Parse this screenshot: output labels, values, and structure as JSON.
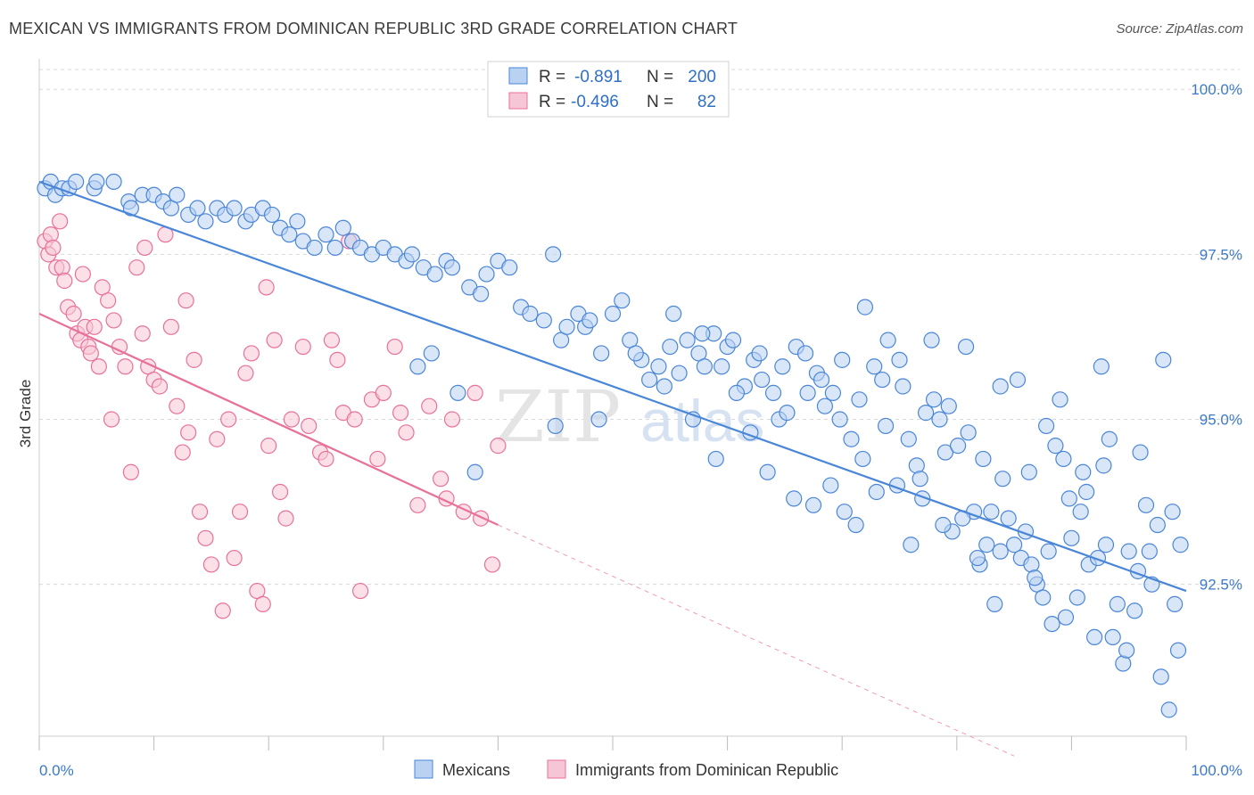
{
  "title": "MEXICAN VS IMMIGRANTS FROM DOMINICAN REPUBLIC 3RD GRADE CORRELATION CHART",
  "source": "Source: ZipAtlas.com",
  "watermark": {
    "zip": "ZIP",
    "atlas": "atlas"
  },
  "colors": {
    "blue": "#4a86d8",
    "blue_fill": "#b9d2f2",
    "pink": "#e8719a",
    "pink_fill": "#f7c6d6",
    "grid": "#d9d9d9",
    "axis_text": "#3c79c9"
  },
  "legend": {
    "rows": [
      {
        "r_label": "R =",
        "r_value": "-0.891",
        "n_label": "N =",
        "n_value": "200"
      },
      {
        "r_label": "R =",
        "r_value": "-0.496",
        "n_label": "N =",
        "n_value": "82"
      }
    ]
  },
  "chart_data": {
    "type": "scatter",
    "title": "MEXICAN VS IMMIGRANTS FROM DOMINICAN REPUBLIC 3RD GRADE CORRELATION CHART",
    "xlabel": "",
    "ylabel": "3rd Grade",
    "xlim": [
      0,
      100
    ],
    "ylim": [
      90.2,
      100.3
    ],
    "x_tick_labels": [
      "0.0%",
      "100.0%"
    ],
    "y_ticks": [
      92.5,
      95.0,
      97.5,
      100.0
    ],
    "y_tick_labels": [
      "92.5%",
      "95.0%",
      "97.5%",
      "100.0%"
    ],
    "grid": true,
    "legend_position": "top-center",
    "series": [
      {
        "name": "Mexicans",
        "color": "#4a86d8",
        "trend": {
          "x": [
            0,
            100
          ],
          "y": [
            98.6,
            92.4
          ],
          "dashed_to": null
        },
        "points": [
          [
            0.5,
            98.5
          ],
          [
            1.0,
            98.6
          ],
          [
            1.4,
            98.4
          ],
          [
            2.0,
            98.5
          ],
          [
            2.6,
            98.5
          ],
          [
            3.2,
            98.6
          ],
          [
            4.8,
            98.5
          ],
          [
            5.0,
            98.6
          ],
          [
            6.5,
            98.6
          ],
          [
            7.8,
            98.3
          ],
          [
            8.0,
            98.2
          ],
          [
            9.0,
            98.4
          ],
          [
            10.0,
            98.4
          ],
          [
            10.8,
            98.3
          ],
          [
            11.5,
            98.2
          ],
          [
            12.0,
            98.4
          ],
          [
            13.0,
            98.1
          ],
          [
            13.8,
            98.2
          ],
          [
            14.5,
            98.0
          ],
          [
            15.5,
            98.2
          ],
          [
            16.2,
            98.1
          ],
          [
            17.0,
            98.2
          ],
          [
            18.0,
            98.0
          ],
          [
            18.5,
            98.1
          ],
          [
            19.5,
            98.2
          ],
          [
            20.3,
            98.1
          ],
          [
            21.0,
            97.9
          ],
          [
            21.8,
            97.8
          ],
          [
            22.5,
            98.0
          ],
          [
            23.0,
            97.7
          ],
          [
            24.0,
            97.6
          ],
          [
            25.0,
            97.8
          ],
          [
            25.8,
            97.6
          ],
          [
            26.5,
            97.9
          ],
          [
            27.3,
            97.7
          ],
          [
            28.0,
            97.6
          ],
          [
            29.0,
            97.5
          ],
          [
            30.0,
            97.6
          ],
          [
            31.0,
            97.5
          ],
          [
            32.0,
            97.4
          ],
          [
            32.5,
            97.5
          ],
          [
            33.5,
            97.3
          ],
          [
            34.5,
            97.2
          ],
          [
            35.5,
            97.4
          ],
          [
            36.0,
            97.3
          ],
          [
            37.5,
            97.0
          ],
          [
            38.5,
            96.9
          ],
          [
            39.0,
            97.2
          ],
          [
            40.0,
            97.4
          ],
          [
            41.0,
            97.3
          ],
          [
            42.0,
            96.7
          ],
          [
            42.8,
            96.6
          ],
          [
            44.0,
            96.5
          ],
          [
            44.8,
            97.5
          ],
          [
            45.5,
            96.2
          ],
          [
            46.0,
            96.4
          ],
          [
            47.0,
            96.6
          ],
          [
            47.6,
            96.4
          ],
          [
            48.0,
            96.5
          ],
          [
            49.0,
            96.0
          ],
          [
            50.0,
            96.6
          ],
          [
            50.8,
            96.8
          ],
          [
            51.5,
            96.2
          ],
          [
            52.5,
            95.9
          ],
          [
            53.2,
            95.6
          ],
          [
            54.0,
            95.8
          ],
          [
            55.0,
            96.1
          ],
          [
            55.8,
            95.7
          ],
          [
            56.5,
            96.2
          ],
          [
            57.5,
            96.0
          ],
          [
            58.0,
            95.8
          ],
          [
            58.8,
            96.3
          ],
          [
            59.5,
            95.8
          ],
          [
            60.0,
            96.1
          ],
          [
            60.5,
            96.2
          ],
          [
            61.5,
            95.5
          ],
          [
            62.3,
            95.9
          ],
          [
            63.0,
            95.6
          ],
          [
            64.0,
            95.4
          ],
          [
            64.5,
            95.0
          ],
          [
            65.2,
            95.1
          ],
          [
            66.0,
            96.1
          ],
          [
            67.0,
            95.4
          ],
          [
            67.8,
            95.7
          ],
          [
            68.5,
            95.2
          ],
          [
            69.2,
            95.4
          ],
          [
            70.0,
            95.9
          ],
          [
            70.8,
            94.7
          ],
          [
            71.5,
            95.3
          ],
          [
            72.0,
            96.7
          ],
          [
            72.8,
            95.8
          ],
          [
            73.5,
            95.6
          ],
          [
            74.0,
            96.2
          ],
          [
            75.0,
            95.9
          ],
          [
            75.8,
            94.7
          ],
          [
            76.5,
            94.3
          ],
          [
            77.3,
            95.1
          ],
          [
            78.0,
            95.3
          ],
          [
            78.5,
            95.0
          ],
          [
            79.0,
            94.5
          ],
          [
            79.6,
            93.3
          ],
          [
            80.1,
            94.6
          ],
          [
            81.0,
            94.8
          ],
          [
            81.5,
            93.6
          ],
          [
            82.0,
            92.8
          ],
          [
            82.6,
            93.1
          ],
          [
            83.0,
            93.6
          ],
          [
            83.8,
            93.0
          ],
          [
            84.5,
            93.5
          ],
          [
            85.0,
            93.1
          ],
          [
            85.6,
            92.9
          ],
          [
            86.0,
            93.3
          ],
          [
            86.5,
            92.8
          ],
          [
            87.0,
            92.5
          ],
          [
            87.5,
            92.3
          ],
          [
            88.0,
            93.0
          ],
          [
            88.6,
            94.6
          ],
          [
            89.0,
            95.3
          ],
          [
            89.5,
            92.0
          ],
          [
            90.0,
            93.2
          ],
          [
            90.5,
            92.3
          ],
          [
            91.0,
            94.2
          ],
          [
            91.5,
            92.8
          ],
          [
            92.0,
            91.7
          ],
          [
            92.6,
            95.8
          ],
          [
            93.0,
            93.1
          ],
          [
            93.6,
            91.7
          ],
          [
            94.0,
            92.2
          ],
          [
            94.5,
            91.3
          ],
          [
            95.0,
            93.0
          ],
          [
            95.5,
            92.1
          ],
          [
            96.0,
            94.5
          ],
          [
            96.5,
            93.7
          ],
          [
            97.0,
            92.5
          ],
          [
            97.5,
            93.4
          ],
          [
            98.0,
            95.9
          ],
          [
            98.5,
            90.6
          ],
          [
            99.0,
            92.2
          ],
          [
            99.5,
            93.1
          ],
          [
            38.0,
            94.2
          ],
          [
            33.0,
            95.8
          ],
          [
            34.2,
            96.0
          ],
          [
            36.5,
            95.4
          ],
          [
            45.0,
            94.9
          ],
          [
            48.8,
            95.0
          ],
          [
            52.0,
            96.0
          ],
          [
            54.5,
            95.5
          ],
          [
            57.0,
            95.0
          ],
          [
            59.0,
            94.4
          ],
          [
            62.0,
            94.8
          ],
          [
            63.5,
            94.2
          ],
          [
            65.8,
            93.8
          ],
          [
            67.5,
            93.7
          ],
          [
            69.0,
            94.0
          ],
          [
            70.2,
            93.6
          ],
          [
            71.2,
            93.4
          ],
          [
            73.0,
            93.9
          ],
          [
            74.8,
            94.0
          ],
          [
            76.0,
            93.1
          ],
          [
            77.0,
            93.8
          ],
          [
            78.8,
            93.4
          ],
          [
            80.5,
            93.5
          ],
          [
            81.8,
            92.9
          ],
          [
            83.3,
            92.2
          ],
          [
            84.0,
            94.1
          ],
          [
            86.8,
            92.6
          ],
          [
            88.3,
            91.9
          ],
          [
            89.8,
            93.8
          ],
          [
            91.3,
            93.9
          ],
          [
            92.3,
            92.9
          ],
          [
            93.3,
            94.7
          ],
          [
            94.8,
            91.5
          ],
          [
            95.8,
            92.7
          ],
          [
            96.8,
            93.0
          ],
          [
            97.8,
            91.1
          ],
          [
            98.8,
            93.6
          ],
          [
            99.3,
            91.5
          ],
          [
            55.3,
            96.6
          ],
          [
            57.8,
            96.3
          ],
          [
            60.8,
            95.4
          ],
          [
            62.8,
            96.0
          ],
          [
            64.8,
            95.8
          ],
          [
            66.8,
            96.0
          ],
          [
            68.2,
            95.6
          ],
          [
            69.8,
            95.0
          ],
          [
            71.8,
            94.4
          ],
          [
            73.8,
            94.9
          ],
          [
            75.3,
            95.5
          ],
          [
            76.8,
            94.1
          ],
          [
            77.8,
            96.2
          ],
          [
            79.3,
            95.2
          ],
          [
            80.8,
            96.1
          ],
          [
            82.3,
            94.4
          ],
          [
            83.8,
            95.5
          ],
          [
            85.3,
            95.6
          ],
          [
            86.3,
            94.2
          ],
          [
            87.8,
            94.9
          ],
          [
            89.3,
            94.4
          ],
          [
            90.8,
            93.6
          ],
          [
            92.8,
            94.3
          ]
        ]
      },
      {
        "name": "Immigrants from Dominican Republic",
        "color": "#e8719a",
        "trend": {
          "x": [
            0,
            40
          ],
          "y": [
            96.6,
            93.4
          ],
          "dashed_to": [
            85,
            89.9
          ]
        },
        "points": [
          [
            0.5,
            97.7
          ],
          [
            0.8,
            97.5
          ],
          [
            1.0,
            97.8
          ],
          [
            1.2,
            97.6
          ],
          [
            1.5,
            97.3
          ],
          [
            2.0,
            97.3
          ],
          [
            2.2,
            97.1
          ],
          [
            2.5,
            96.7
          ],
          [
            3.0,
            96.6
          ],
          [
            3.3,
            96.3
          ],
          [
            3.6,
            96.2
          ],
          [
            4.0,
            96.4
          ],
          [
            4.3,
            96.1
          ],
          [
            4.5,
            96.0
          ],
          [
            4.8,
            96.4
          ],
          [
            5.2,
            95.8
          ],
          [
            5.5,
            97.0
          ],
          [
            6.0,
            96.8
          ],
          [
            6.5,
            96.5
          ],
          [
            7.0,
            96.1
          ],
          [
            7.5,
            95.8
          ],
          [
            8.0,
            94.2
          ],
          [
            8.5,
            97.3
          ],
          [
            9.0,
            96.3
          ],
          [
            9.5,
            95.8
          ],
          [
            10.0,
            95.6
          ],
          [
            10.5,
            95.5
          ],
          [
            11.0,
            97.8
          ],
          [
            11.5,
            96.4
          ],
          [
            12.0,
            95.2
          ],
          [
            12.5,
            94.5
          ],
          [
            13.0,
            94.8
          ],
          [
            13.5,
            95.9
          ],
          [
            14.0,
            93.6
          ],
          [
            14.5,
            93.2
          ],
          [
            15.0,
            92.8
          ],
          [
            15.5,
            94.7
          ],
          [
            16.0,
            92.1
          ],
          [
            16.5,
            95.0
          ],
          [
            17.0,
            92.9
          ],
          [
            17.5,
            93.6
          ],
          [
            18.0,
            95.7
          ],
          [
            18.5,
            96.0
          ],
          [
            19.0,
            92.4
          ],
          [
            19.5,
            92.2
          ],
          [
            20.0,
            94.6
          ],
          [
            20.5,
            96.2
          ],
          [
            21.0,
            93.9
          ],
          [
            21.5,
            93.5
          ],
          [
            22.0,
            95.0
          ],
          [
            23.0,
            96.1
          ],
          [
            23.5,
            94.9
          ],
          [
            24.5,
            94.5
          ],
          [
            25.0,
            94.4
          ],
          [
            25.5,
            96.2
          ],
          [
            26.0,
            95.9
          ],
          [
            26.5,
            95.1
          ],
          [
            27.0,
            97.7
          ],
          [
            27.5,
            95.0
          ],
          [
            28.0,
            92.4
          ],
          [
            29.0,
            95.3
          ],
          [
            29.5,
            94.4
          ],
          [
            30.0,
            95.4
          ],
          [
            31.0,
            96.1
          ],
          [
            31.5,
            95.1
          ],
          [
            32.0,
            94.8
          ],
          [
            33.0,
            93.7
          ],
          [
            34.0,
            95.2
          ],
          [
            35.0,
            94.1
          ],
          [
            35.5,
            93.8
          ],
          [
            36.0,
            95.0
          ],
          [
            37.0,
            93.6
          ],
          [
            38.0,
            95.4
          ],
          [
            38.5,
            93.5
          ],
          [
            39.5,
            92.8
          ],
          [
            40.0,
            94.6
          ],
          [
            1.8,
            98.0
          ],
          [
            3.8,
            97.2
          ],
          [
            6.3,
            95.0
          ],
          [
            9.2,
            97.6
          ],
          [
            12.8,
            96.8
          ],
          [
            19.8,
            97.0
          ]
        ]
      }
    ]
  },
  "bottom_legend": [
    "Mexicans",
    "Immigrants from Dominican Republic"
  ]
}
